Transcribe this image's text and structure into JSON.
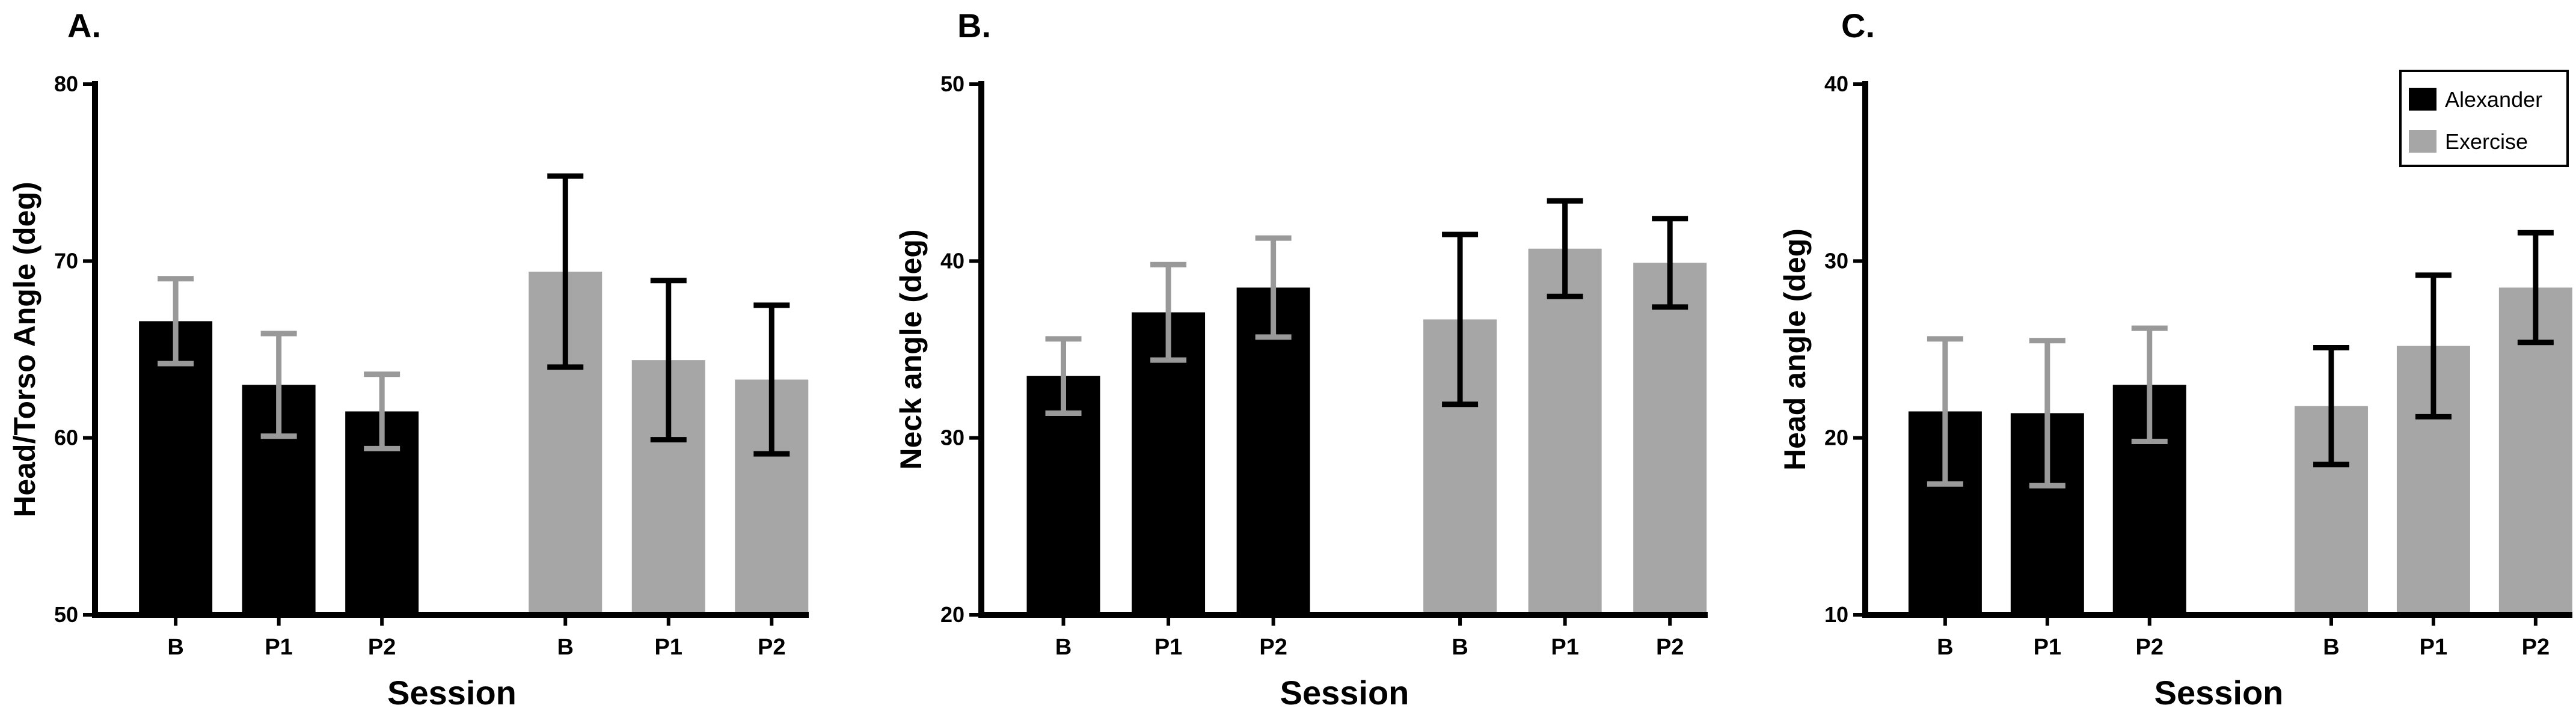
{
  "chart_data": [
    {
      "type": "bar",
      "panel": "A.",
      "xlabel": "Session",
      "ylabel": "Head/Torso Angle (deg)",
      "ylim": [
        50,
        80
      ],
      "yticks": [
        "50",
        "60",
        "70",
        "80"
      ],
      "categories": [
        "B",
        "P1",
        "P2"
      ],
      "series": [
        {
          "name": "Alexander",
          "color": "#000000",
          "error_color": "#999999",
          "values": [
            66.6,
            63.0,
            61.5
          ],
          "errors": [
            2.4,
            2.9,
            2.1
          ]
        },
        {
          "name": "Exercise",
          "color": "#a6a6a6",
          "error_color": "#000000",
          "values": [
            69.4,
            64.4,
            63.3
          ],
          "errors": [
            5.4,
            4.5,
            4.2
          ]
        }
      ]
    },
    {
      "type": "bar",
      "panel": "B.",
      "xlabel": "Session",
      "ylabel": "Neck angle (deg)",
      "ylim": [
        20,
        50
      ],
      "yticks": [
        "20",
        "30",
        "40",
        "50"
      ],
      "categories": [
        "B",
        "P1",
        "P2"
      ],
      "series": [
        {
          "name": "Alexander",
          "color": "#000000",
          "error_color": "#999999",
          "values": [
            33.5,
            37.1,
            38.5
          ],
          "errors": [
            2.1,
            2.7,
            2.8
          ]
        },
        {
          "name": "Exercise",
          "color": "#a6a6a6",
          "error_color": "#000000",
          "values": [
            36.7,
            40.7,
            39.9
          ],
          "errors": [
            4.8,
            2.7,
            2.5
          ]
        }
      ]
    },
    {
      "type": "bar",
      "panel": "C.",
      "xlabel": "Session",
      "ylabel": "Head angle (deg)",
      "ylim": [
        10,
        40
      ],
      "yticks": [
        "10",
        "20",
        "30",
        "40"
      ],
      "categories": [
        "B",
        "P1",
        "P2"
      ],
      "legend": {
        "placement": "top-right",
        "entries": [
          "Alexander",
          "Exercise"
        ]
      },
      "series": [
        {
          "name": "Alexander",
          "color": "#000000",
          "error_color": "#999999",
          "values": [
            21.5,
            21.4,
            23.0
          ],
          "errors": [
            4.1,
            4.1,
            3.2
          ]
        },
        {
          "name": "Exercise",
          "color": "#a6a6a6",
          "error_color": "#000000",
          "values": [
            21.8,
            25.2,
            28.5
          ],
          "errors": [
            3.3,
            4.0,
            3.1
          ]
        }
      ]
    }
  ]
}
